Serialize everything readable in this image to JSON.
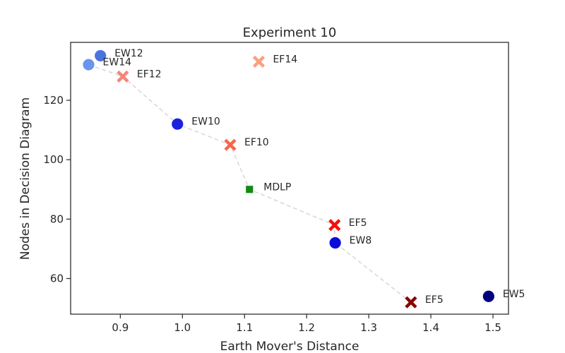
{
  "chart_data": {
    "type": "scatter",
    "title": "Experiment 10",
    "xlabel": "Earth Mover's Distance",
    "ylabel": "Nodes in Decision Diagram",
    "xlim": [
      0.82,
      1.525
    ],
    "ylim": [
      48,
      139.5
    ],
    "xticks": [
      0.9,
      1.0,
      1.1,
      1.2,
      1.3,
      1.4,
      1.5
    ],
    "yticks": [
      60,
      80,
      100,
      120
    ],
    "grid": false,
    "points": [
      {
        "label": "EW12",
        "x": 0.868,
        "y": 135,
        "marker": "circle",
        "color": "#4a74de"
      },
      {
        "label": "EW14",
        "x": 0.849,
        "y": 132,
        "marker": "circle",
        "color": "#6b95ec"
      },
      {
        "label": "EF12",
        "x": 0.904,
        "y": 128,
        "marker": "x",
        "color": "#f4877a"
      },
      {
        "label": "EF14",
        "x": 1.123,
        "y": 133,
        "marker": "x",
        "color": "#fca07f"
      },
      {
        "label": "EW10",
        "x": 0.992,
        "y": 112,
        "marker": "circle",
        "color": "#1a22e0"
      },
      {
        "label": "EF10",
        "x": 1.077,
        "y": 105,
        "marker": "x",
        "color": "#f76649"
      },
      {
        "label": "MDLP",
        "x": 1.108,
        "y": 90,
        "marker": "square",
        "color": "#148a14"
      },
      {
        "label": "EF5",
        "x": 1.245,
        "y": 78,
        "marker": "x",
        "color": "#f50e0e"
      },
      {
        "label": "EW8",
        "x": 1.246,
        "y": 72,
        "marker": "circle",
        "color": "#0c0cd8"
      },
      {
        "label": "EF5",
        "x": 1.368,
        "y": 52,
        "marker": "x",
        "color": "#8a0000"
      },
      {
        "label": "EW5",
        "x": 1.493,
        "y": 54,
        "marker": "circle",
        "color": "#00007f"
      }
    ],
    "pareto_line": {
      "color": "#d9d9d9",
      "points": [
        {
          "x": 0.849,
          "y": 132
        },
        {
          "x": 0.904,
          "y": 128
        },
        {
          "x": 0.992,
          "y": 112
        },
        {
          "x": 1.077,
          "y": 105
        },
        {
          "x": 1.108,
          "y": 90
        },
        {
          "x": 1.245,
          "y": 78
        },
        {
          "x": 1.246,
          "y": 72
        },
        {
          "x": 1.368,
          "y": 52
        }
      ]
    }
  }
}
